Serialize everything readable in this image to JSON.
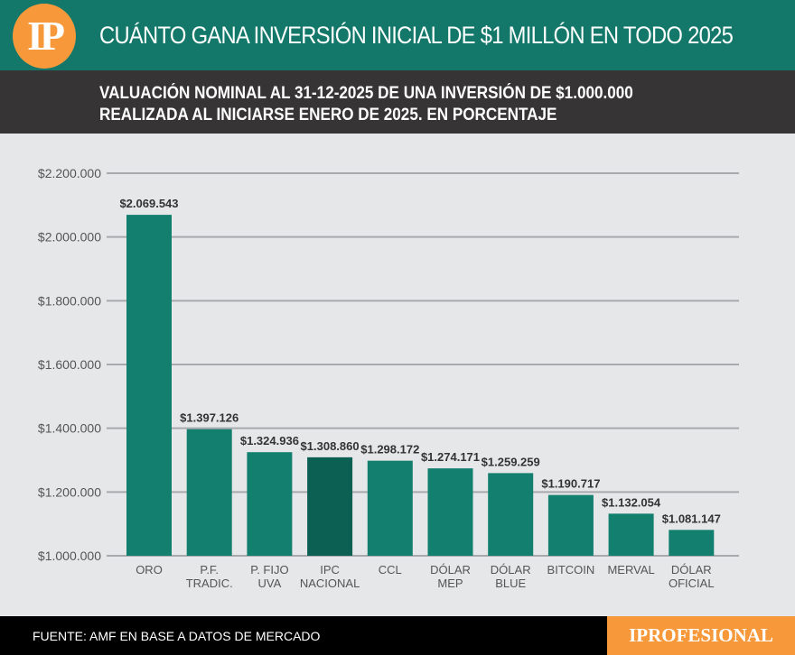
{
  "header": {
    "logo": "IP",
    "title": "CUÁNTO GANA INVERSIÓN INICIAL DE $1 MILLÓN EN TODO 2025"
  },
  "subtitle_lines": [
    "VALUACIÓN NOMINAL AL 31-12-2025 DE UNA INVERSIÓN DE $1.000.000",
    "REALIZADA AL INICIARSE ENERO DE 2025. EN PORCENTAJE"
  ],
  "footer": {
    "source": "FUENTE: AMF EN BASE A DATOS DE MERCADO",
    "brand": "IPROFESIONAL"
  },
  "colors": {
    "bar": "#13806f",
    "highlight_bar": "#0b5f53",
    "header": "#13786a",
    "accent": "#f7993a"
  },
  "chart_data": {
    "type": "bar",
    "categories": [
      [
        "ORO"
      ],
      [
        "P.F.",
        "TRADIC."
      ],
      [
        "P. FIJO",
        "UVA"
      ],
      [
        "IPC",
        "NACIONAL"
      ],
      [
        "CCL"
      ],
      [
        "DÓLAR",
        "MEP"
      ],
      [
        "DÓLAR",
        "BLUE"
      ],
      [
        "BITCOIN"
      ],
      [
        "MERVAL"
      ],
      [
        "DÓLAR",
        "OFICIAL"
      ]
    ],
    "values": [
      2069543,
      1397126,
      1324936,
      1308860,
      1298172,
      1274171,
      1259259,
      1190717,
      1132054,
      1081147
    ],
    "data_labels": [
      "$2.069.543",
      "$1.397.126",
      "$1.324.936",
      "$1.308.860",
      "$1.298.172",
      "$1.274.171",
      "$1.259.259",
      "$1.190.717",
      "$1.132.054",
      "$1.081.147"
    ],
    "highlight_index": 3,
    "ylim": [
      1000000,
      2200000
    ],
    "yticks": [
      1000000,
      1200000,
      1400000,
      1600000,
      1800000,
      2000000,
      2200000
    ],
    "ytick_labels": [
      "$1.000.000",
      "$1.200.000",
      "$1.400.000",
      "$1.600.000",
      "$1.800.000",
      "$2.000.000",
      "$2.200.000"
    ],
    "grid": true
  }
}
